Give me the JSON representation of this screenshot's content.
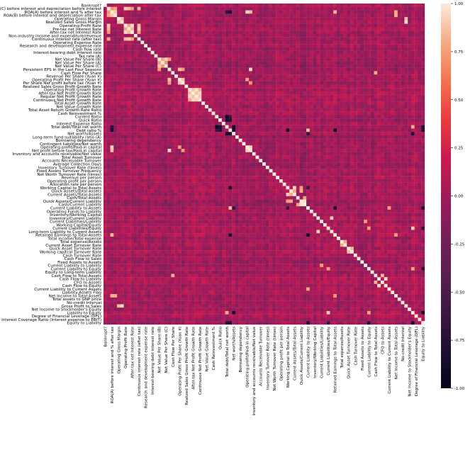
{
  "chart_data": {
    "type": "heatmap",
    "title": "",
    "xlabel": "",
    "ylabel": "",
    "labels": [
      "Bankrupt?",
      "ROA(C) before interest and depreciation before interest",
      "ROA(A) before interest and % after tax",
      "ROA(B) before interest and depreciation after tax",
      "Operating Gross Margin",
      "Realized Sales Gross Margin",
      "Operating Profit Rate",
      "Pre-tax net Interest Rate",
      "After-tax net Interest Rate",
      "Non-industry income and expenditure/revenue",
      "Continuous interest rate (after tax)",
      "Operating Expense Rate",
      "Research and development expense rate",
      "Cash flow rate",
      "Interest-bearing debt interest rate",
      "Tax rate (A)",
      "Net Value Per Share (B)",
      "Net Value Per Share (A)",
      "Net Value Per Share (C)",
      "Persistent EPS in the Last Four Seasons",
      "Cash Flow Per Share",
      "Revenue Per Share (Yuan ¥)",
      "Operating Profit Per Share (Yuan ¥)",
      "Per Share Net profit before tax (Yuan ¥)",
      "Realized Sales Gross Profit Growth Rate",
      "Operating Profit Growth Rate",
      "After-tax Net Profit Growth Rate",
      "Regular Net Profit Growth Rate",
      "Continuous Net Profit Growth Rate",
      "Total Asset Growth Rate",
      "Net Value Growth Rate",
      "Total Asset Return Growth Rate Ratio",
      "Cash Reinvestment %",
      "Current Ratio",
      "Quick Ratio",
      "Interest Expense Ratio",
      "Total debt/Total net worth",
      "Debt ratio %",
      "Net worth/Assets",
      "Long-term fund suitability ratio (A)",
      "Borrowing dependency",
      "Contingent liabilities/Net worth",
      "Operating profit/Paid-in capital",
      "Net profit before tax/Paid-in capital",
      "Inventory and accounts receivable/Net value",
      "Total Asset Turnover",
      "Accounts Receivable Turnover",
      "Average Collection Days",
      "Inventory Turnover Rate (times)",
      "Fixed Assets Turnover Frequency",
      "Net Worth Turnover Rate (times)",
      "Revenue per person",
      "Operating profit per person",
      "Allocation rate per person",
      "Working Capital to Total Assets",
      "Quick Assets/Total Assets",
      "Current Assets/Total Assets",
      "Cash/Total Assets",
      "Quick Assets/Current Liability",
      "Cash/Current Liability",
      "Current Liability to Assets",
      "Operating Funds to Liability",
      "Inventory/Working Capital",
      "Inventory/Current Liability",
      "Current Liabilities/Liability",
      "Working Capital/Equity",
      "Current Liabilities/Equity",
      "Long-term Liability to Current Assets",
      "Retained Earnings to Total Assets",
      "Total income/Total expense",
      "Total expense/Assets",
      "Current Asset Turnover Rate",
      "Quick Asset Turnover Rate",
      "Working capitcal Turnover Rate",
      "Cash Turnover Rate",
      "Cash Flow to Sales",
      "Fixed Assets to Assets",
      "Current Liability to Liability",
      "Current Liability to Equity",
      "Equity to Long-term Liability",
      "Cash Flow to Total Assets",
      "Cash Flow to Liability",
      "CFO to Assets",
      "Cash Flow to Equity",
      "Current Liability to Current Assets",
      "Liability-Assets Flag",
      "Net Income to Total Assets",
      "Total assets to GNP price",
      "No-credit Interval",
      "Gross Profit to Sales",
      "Net Income to Stockholder's Equity",
      "Liability to Equity",
      "Degree of Financial Leverage (DFL)",
      "Interest Coverage Ratio (Interest expense to EBIT)",
      "Equity to Liability"
    ],
    "x_tick_every": 2,
    "colorbar": {
      "min": -1.0,
      "max": 1.0,
      "ticks": [
        "1.00",
        "0.75",
        "0.50",
        "0.25",
        "0.00",
        "-0.25",
        "-0.50",
        "-0.75",
        "-1.00"
      ]
    },
    "strong_positive_pairs": [
      [
        1,
        3
      ],
      [
        2,
        3
      ],
      [
        1,
        2
      ],
      [
        1,
        6
      ],
      [
        1,
        7
      ],
      [
        1,
        8
      ],
      [
        1,
        10
      ],
      [
        2,
        42
      ],
      [
        2,
        43
      ],
      [
        3,
        86
      ],
      [
        4,
        5
      ],
      [
        4,
        89
      ],
      [
        5,
        89
      ],
      [
        6,
        7
      ],
      [
        6,
        8
      ],
      [
        7,
        8
      ],
      [
        7,
        10
      ],
      [
        8,
        10
      ],
      [
        6,
        10
      ],
      [
        16,
        17
      ],
      [
        16,
        18
      ],
      [
        17,
        18
      ],
      [
        16,
        19
      ],
      [
        19,
        22
      ],
      [
        19,
        23
      ],
      [
        22,
        23
      ],
      [
        22,
        42
      ],
      [
        23,
        43
      ],
      [
        42,
        43
      ],
      [
        19,
        43
      ],
      [
        25,
        26
      ],
      [
        25,
        27
      ],
      [
        25,
        28
      ],
      [
        26,
        27
      ],
      [
        26,
        28
      ],
      [
        27,
        28
      ],
      [
        36,
        91
      ],
      [
        37,
        60
      ],
      [
        54,
        56
      ],
      [
        55,
        56
      ],
      [
        55,
        58
      ],
      [
        57,
        59
      ],
      [
        58,
        59
      ],
      [
        54,
        58
      ],
      [
        60,
        84
      ],
      [
        63,
        67
      ],
      [
        64,
        77
      ],
      [
        66,
        78
      ],
      [
        66,
        91
      ],
      [
        78,
        91
      ],
      [
        80,
        82
      ],
      [
        81,
        83
      ],
      [
        70,
        71
      ],
      [
        72,
        73
      ],
      [
        20,
        80
      ],
      [
        2,
        86
      ],
      [
        2,
        68
      ],
      [
        86,
        68
      ]
    ],
    "strong_negative_pairs": [
      [
        37,
        38
      ],
      [
        33,
        36
      ],
      [
        34,
        36
      ],
      [
        33,
        37
      ],
      [
        34,
        37
      ],
      [
        36,
        38
      ],
      [
        38,
        60
      ],
      [
        38,
        91
      ],
      [
        37,
        94
      ],
      [
        36,
        94
      ],
      [
        60,
        94
      ],
      [
        66,
        94
      ],
      [
        91,
        94
      ],
      [
        78,
        94
      ],
      [
        2,
        37
      ],
      [
        2,
        36
      ],
      [
        68,
        37
      ],
      [
        68,
        60
      ],
      [
        54,
        60
      ],
      [
        54,
        37
      ]
    ]
  }
}
